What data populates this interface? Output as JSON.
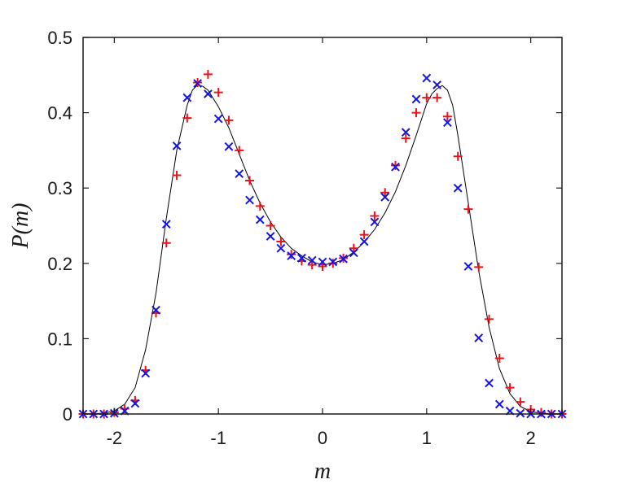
{
  "chart_data": {
    "type": "scatter",
    "title": "",
    "xlabel": "m",
    "ylabel": "P(m)",
    "xlim": [
      -2.3,
      2.3
    ],
    "ylim": [
      0,
      0.5
    ],
    "xticks": [
      -2,
      -1,
      0,
      1,
      2
    ],
    "xtick_labels": [
      "-2",
      "-1",
      "0",
      "1",
      "2"
    ],
    "yticks": [
      0,
      0.1,
      0.2,
      0.3,
      0.4,
      0.5
    ],
    "ytick_labels": [
      "0",
      "0.1",
      "0.2",
      "0.3",
      "0.4",
      "0.5"
    ],
    "grid": false,
    "legend": "none",
    "colors": {
      "curve": "#000000",
      "plus": "#e8141c",
      "cross": "#1414e6",
      "axis": "#1a1a1a"
    },
    "series": [
      {
        "marker": "line",
        "x": [
          -2.3,
          -2.1,
          -2.0,
          -1.9,
          -1.8,
          -1.7,
          -1.6,
          -1.5,
          -1.4,
          -1.3,
          -1.25,
          -1.2,
          -1.15,
          -1.1,
          -1.0,
          -0.9,
          -0.8,
          -0.7,
          -0.6,
          -0.5,
          -0.4,
          -0.3,
          -0.2,
          -0.1,
          0.0,
          0.1,
          0.2,
          0.3,
          0.4,
          0.5,
          0.6,
          0.7,
          0.8,
          0.9,
          1.0,
          1.05,
          1.1,
          1.15,
          1.2,
          1.25,
          1.3,
          1.4,
          1.5,
          1.6,
          1.7,
          1.8,
          1.9,
          2.0,
          2.1,
          2.3
        ],
        "y": [
          0.0,
          0.001,
          0.004,
          0.013,
          0.035,
          0.085,
          0.16,
          0.26,
          0.35,
          0.41,
          0.43,
          0.437,
          0.435,
          0.43,
          0.408,
          0.38,
          0.345,
          0.31,
          0.28,
          0.255,
          0.235,
          0.22,
          0.21,
          0.202,
          0.198,
          0.2,
          0.205,
          0.215,
          0.228,
          0.245,
          0.267,
          0.295,
          0.33,
          0.37,
          0.412,
          0.425,
          0.432,
          0.436,
          0.43,
          0.41,
          0.37,
          0.28,
          0.19,
          0.115,
          0.06,
          0.027,
          0.01,
          0.003,
          0.001,
          0.0
        ]
      },
      {
        "marker": "plus",
        "x": [
          -2.3,
          -2.2,
          -2.1,
          -2.0,
          -1.9,
          -1.8,
          -1.7,
          -1.6,
          -1.5,
          -1.4,
          -1.3,
          -1.2,
          -1.1,
          -1.0,
          -0.9,
          -0.8,
          -0.7,
          -0.6,
          -0.5,
          -0.4,
          -0.3,
          -0.2,
          -0.1,
          0.0,
          0.1,
          0.2,
          0.3,
          0.4,
          0.5,
          0.6,
          0.7,
          0.8,
          0.9,
          1.0,
          1.1,
          1.2,
          1.3,
          1.4,
          1.5,
          1.6,
          1.7,
          1.8,
          1.9,
          2.0,
          2.1,
          2.2,
          2.3
        ],
        "y": [
          0.0,
          0.0,
          0.0,
          0.002,
          0.007,
          0.018,
          0.058,
          0.134,
          0.227,
          0.317,
          0.393,
          0.44,
          0.451,
          0.427,
          0.39,
          0.35,
          0.31,
          0.276,
          0.25,
          0.229,
          0.212,
          0.203,
          0.198,
          0.196,
          0.2,
          0.207,
          0.22,
          0.238,
          0.263,
          0.294,
          0.33,
          0.366,
          0.4,
          0.42,
          0.42,
          0.395,
          0.342,
          0.272,
          0.195,
          0.126,
          0.074,
          0.035,
          0.016,
          0.006,
          0.002,
          0.0,
          0.0
        ]
      },
      {
        "marker": "cross",
        "x": [
          -2.3,
          -2.2,
          -2.1,
          -2.0,
          -1.9,
          -1.8,
          -1.7,
          -1.6,
          -1.5,
          -1.4,
          -1.3,
          -1.2,
          -1.1,
          -1.0,
          -0.9,
          -0.8,
          -0.7,
          -0.6,
          -0.5,
          -0.4,
          -0.3,
          -0.2,
          -0.1,
          0.0,
          0.1,
          0.2,
          0.3,
          0.4,
          0.5,
          0.6,
          0.7,
          0.8,
          0.9,
          1.0,
          1.1,
          1.2,
          1.3,
          1.4,
          1.5,
          1.6,
          1.7,
          1.8,
          1.9,
          2.0,
          2.1,
          2.2,
          2.3
        ],
        "y": [
          0.0,
          0.0,
          0.0,
          0.001,
          0.004,
          0.014,
          0.054,
          0.138,
          0.252,
          0.356,
          0.42,
          0.439,
          0.425,
          0.392,
          0.355,
          0.319,
          0.284,
          0.258,
          0.236,
          0.22,
          0.21,
          0.207,
          0.204,
          0.202,
          0.202,
          0.206,
          0.214,
          0.229,
          0.255,
          0.288,
          0.328,
          0.374,
          0.418,
          0.446,
          0.437,
          0.387,
          0.3,
          0.196,
          0.101,
          0.041,
          0.013,
          0.004,
          0.001,
          0.0,
          0.0,
          0.0,
          0.0
        ]
      }
    ]
  }
}
